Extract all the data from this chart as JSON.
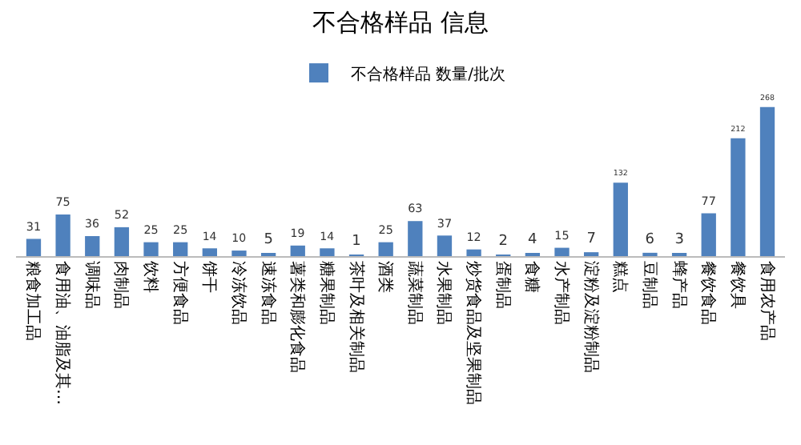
{
  "chart_data": {
    "type": "bar",
    "title": "不合格样品 信息",
    "categories": [
      "粮食加工品",
      "食用油、油脂及其…",
      "调味品",
      "肉制品",
      "饮料",
      "方便食品",
      "饼干",
      "冷冻饮品",
      "速冻食品",
      "薯类和膨化食品",
      "糖果制品",
      "茶叶及相关制品",
      "酒类",
      "蔬菜制品",
      "水果制品",
      "炒货食品及坚果制品",
      "蛋制品",
      "食糖",
      "水产制品",
      "淀粉及淀粉制品",
      "糕点",
      "豆制品",
      "蜂产品",
      "餐饮食品",
      "餐饮具",
      "食用农产品"
    ],
    "series": [
      {
        "name": "不合格样品 数量/批次",
        "color": "#4f81bd",
        "values": [
          31,
          75,
          36,
          52,
          25,
          25,
          14,
          10,
          5,
          19,
          14,
          1,
          25,
          63,
          37,
          12,
          2,
          4,
          15,
          7,
          132,
          6,
          3,
          77,
          212,
          268
        ]
      }
    ],
    "data_labels": true,
    "legend": "top",
    "grid": false,
    "tick_labels": "x"
  }
}
